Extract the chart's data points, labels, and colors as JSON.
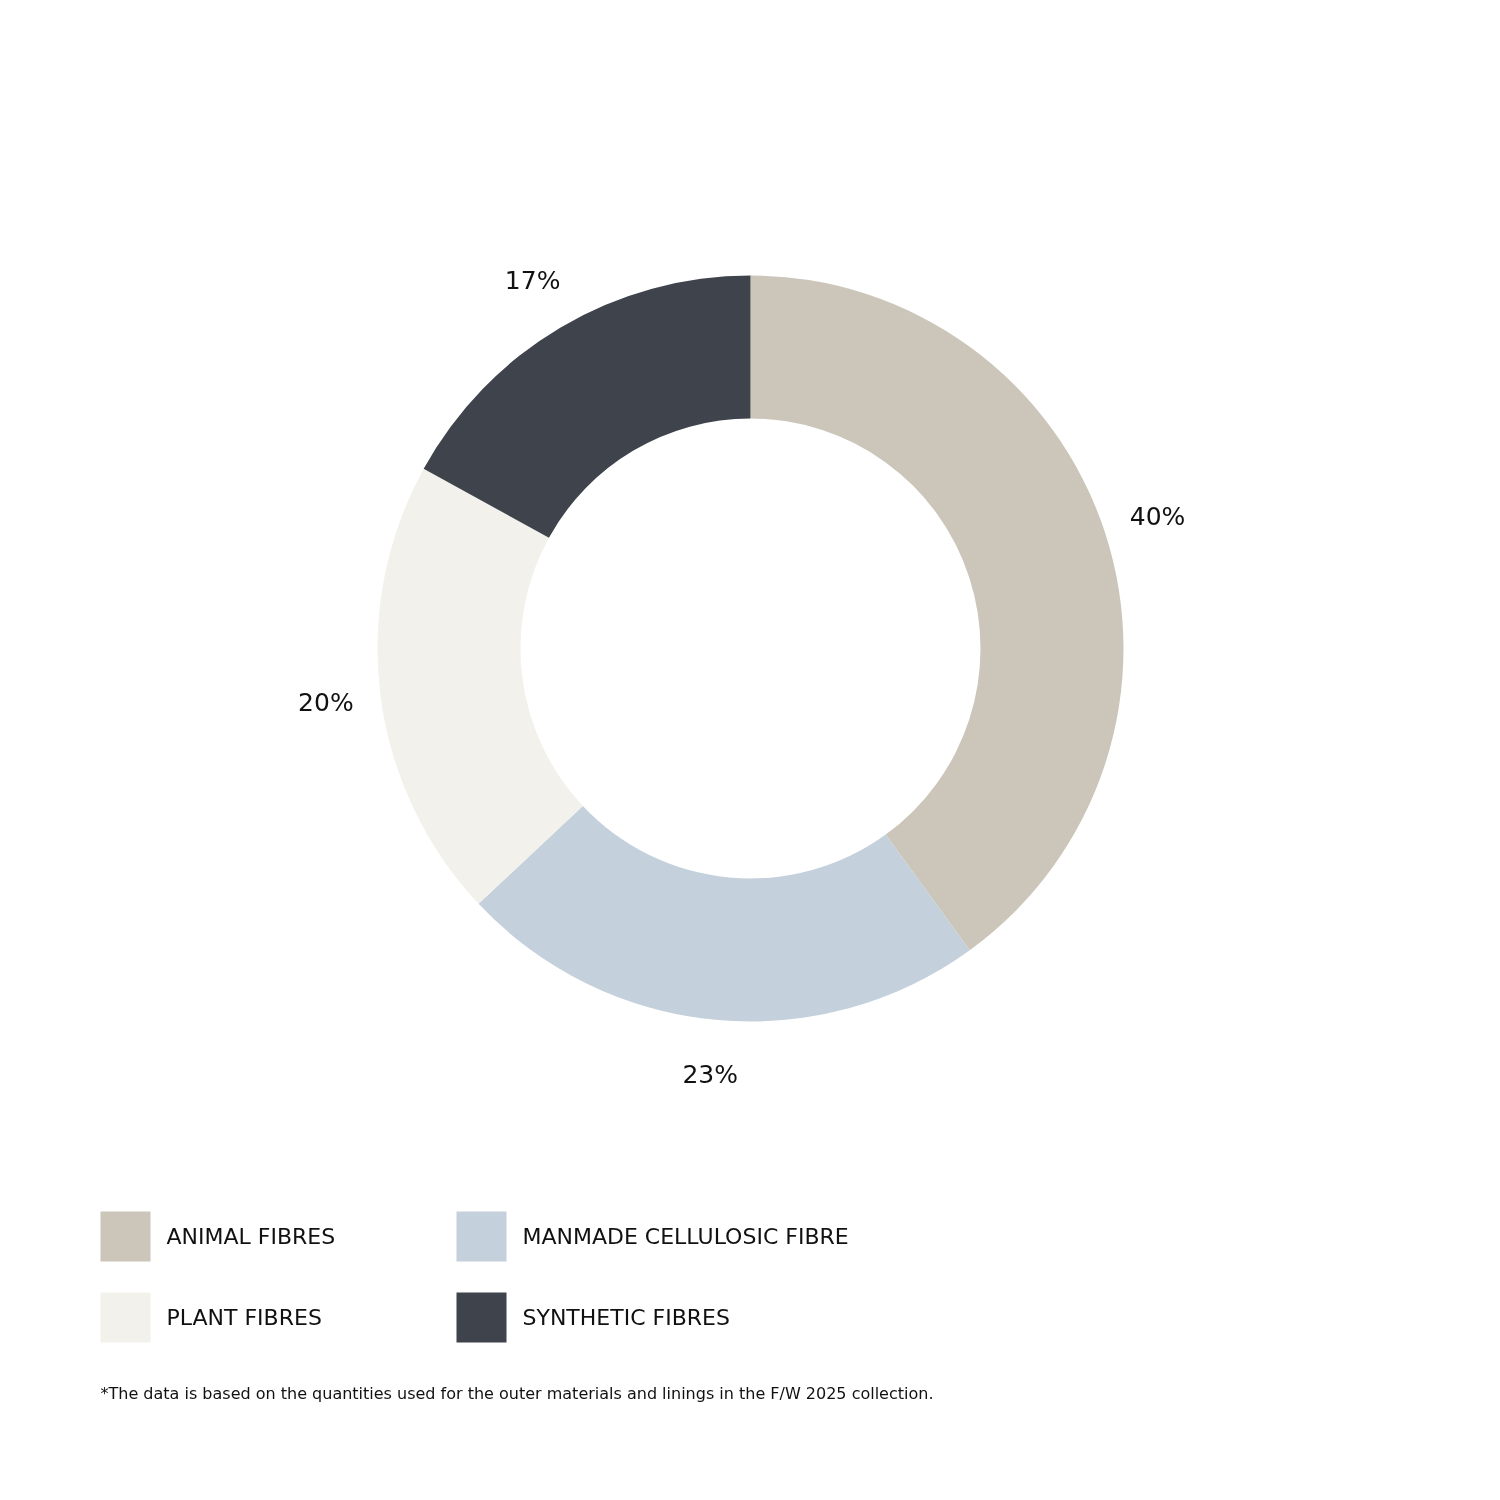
{
  "chart_data": {
    "type": "donut",
    "categories": [
      "ANIMAL FIBRES",
      "MANMADE CELLULOSIC FIBRE",
      "PLANT FIBRES",
      "SYNTHETIC FIBRES"
    ],
    "values": [
      40,
      23,
      20,
      17
    ],
    "colors": [
      "#ccc6ba",
      "#c4d0db",
      "#f2f1ec",
      "#3e434c"
    ],
    "value_labels": [
      "40%",
      "23%",
      "20%",
      "17%"
    ],
    "legend": "bottom",
    "annotations": [
      "*The data is based on the quantities used for the outer materials and linings in the F/W 2025 collection."
    ]
  }
}
